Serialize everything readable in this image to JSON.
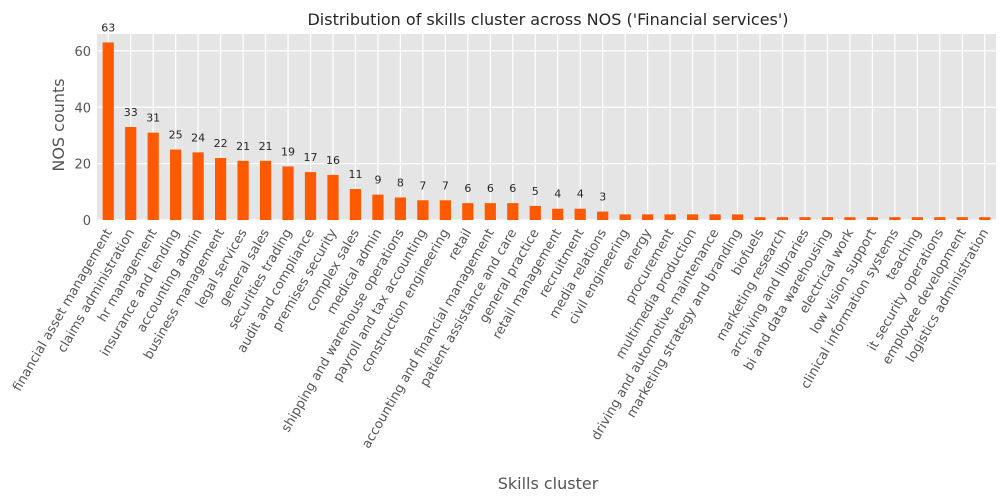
{
  "chart_data": {
    "type": "bar",
    "title": "Distribution of skills cluster across NOS ('Financial services')",
    "xlabel": "Skills cluster",
    "ylabel": "NOS counts",
    "ylim": [
      0,
      66
    ],
    "yticks": [
      0,
      20,
      40,
      60
    ],
    "grid": true,
    "bar_color": "#ff5a00",
    "background_color": "#e5e5e5",
    "categories": [
      "financial asset management",
      "claims administration",
      "hr management",
      "insurance and lending",
      "accounting admin",
      "business management",
      "legal services",
      "general sales",
      "securities trading",
      "audit and compliance",
      "premises security",
      "complex sales",
      "medical admin",
      "shipping and warehouse operations",
      "payroll and tax accounting",
      "construction engineering",
      "retail",
      "accounting and financial management",
      "patient assistance and care",
      "general practice",
      "retail management",
      "recruitment",
      "media relations",
      "civil engineering",
      "energy",
      "procurement",
      "multimedia production",
      "driving and automotive maintenance",
      "marketing strategy and branding",
      "biofuels",
      "marketing research",
      "archiving and libraries",
      "bi and data warehousing",
      "electrical work",
      "low vision support",
      "clinical information systems",
      "teaching",
      "it security operations",
      "employee development",
      "logistics administration"
    ],
    "values": [
      63,
      33,
      31,
      25,
      24,
      22,
      21,
      21,
      19,
      17,
      16,
      11,
      9,
      8,
      7,
      7,
      6,
      6,
      6,
      5,
      4,
      4,
      3,
      2,
      2,
      2,
      2,
      2,
      2,
      1,
      1,
      1,
      1,
      1,
      1,
      1,
      1,
      1,
      1,
      1
    ],
    "data_labels": [
      "63",
      "33",
      "31",
      "25",
      "24",
      "22",
      "21",
      "21",
      "19",
      "17",
      "16",
      "11",
      "9",
      "8",
      "7",
      "7",
      "6",
      "6",
      "6",
      "5",
      "4",
      "4",
      "3",
      "",
      "",
      "",
      "",
      "",
      "",
      "",
      "",
      "",
      "",
      "",
      "",
      "",
      "",
      "",
      "",
      ""
    ]
  }
}
